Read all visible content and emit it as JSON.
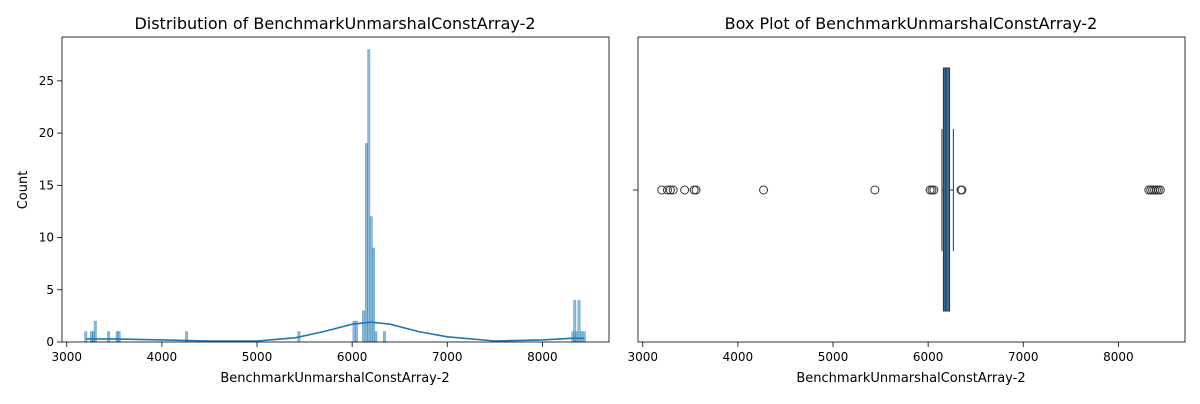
{
  "chart_data": [
    {
      "type": "histogram",
      "title": "Distribution of BenchmarkUnmarshalConstArray-2",
      "xlabel": "BenchmarkUnmarshalConstArray-2",
      "ylabel": "Count",
      "xlim": [
        2950,
        8700
      ],
      "ylim": [
        0,
        29.2
      ],
      "xticks": [
        3000,
        4000,
        5000,
        6000,
        7000,
        8000
      ],
      "yticks": [
        0,
        5,
        10,
        15,
        20,
        25
      ],
      "bar_color": "#1f77b4",
      "bin_width": 25,
      "bins": [
        {
          "x": 3200,
          "count": 1
        },
        {
          "x": 3260,
          "count": 1
        },
        {
          "x": 3280,
          "count": 1
        },
        {
          "x": 3300,
          "count": 2
        },
        {
          "x": 3440,
          "count": 1
        },
        {
          "x": 3530,
          "count": 1
        },
        {
          "x": 3550,
          "count": 1
        },
        {
          "x": 4260,
          "count": 1
        },
        {
          "x": 5440,
          "count": 1
        },
        {
          "x": 6020,
          "count": 2
        },
        {
          "x": 6045,
          "count": 2
        },
        {
          "x": 6120,
          "count": 3
        },
        {
          "x": 6150,
          "count": 19
        },
        {
          "x": 6175,
          "count": 28
        },
        {
          "x": 6200,
          "count": 12
        },
        {
          "x": 6225,
          "count": 9
        },
        {
          "x": 6250,
          "count": 1
        },
        {
          "x": 6340,
          "count": 1
        },
        {
          "x": 8320,
          "count": 1
        },
        {
          "x": 8340,
          "count": 4
        },
        {
          "x": 8360,
          "count": 1
        },
        {
          "x": 8385,
          "count": 4
        },
        {
          "x": 8410,
          "count": 1
        },
        {
          "x": 8440,
          "count": 1
        }
      ],
      "kde": [
        [
          3200,
          0.3
        ],
        [
          3500,
          0.3
        ],
        [
          4000,
          0.2
        ],
        [
          4500,
          0.1
        ],
        [
          5000,
          0.1
        ],
        [
          5400,
          0.4
        ],
        [
          5700,
          1.0
        ],
        [
          6000,
          1.7
        ],
        [
          6200,
          1.9
        ],
        [
          6400,
          1.7
        ],
        [
          6700,
          1.0
        ],
        [
          7000,
          0.5
        ],
        [
          7500,
          0.1
        ],
        [
          8000,
          0.2
        ],
        [
          8300,
          0.35
        ],
        [
          8440,
          0.35
        ]
      ]
    },
    {
      "type": "box",
      "title": "Box Plot of BenchmarkUnmarshalConstArray-2",
      "xlabel": "BenchmarkUnmarshalConstArray-2",
      "xlim": [
        2950,
        8700
      ],
      "xticks": [
        3000,
        4000,
        5000,
        6000,
        7000,
        8000
      ],
      "box_color": "#3a6d96",
      "q1": 6160,
      "median": 6185,
      "q3": 6225,
      "whisker_low": 6145,
      "whisker_high": 6265,
      "outliers": [
        3200,
        3260,
        3290,
        3320,
        3440,
        3540,
        3560,
        4270,
        5440,
        6020,
        6040,
        6060,
        6345,
        6355,
        8320,
        8340,
        8360,
        8380,
        8400,
        8420,
        8440
      ]
    }
  ]
}
